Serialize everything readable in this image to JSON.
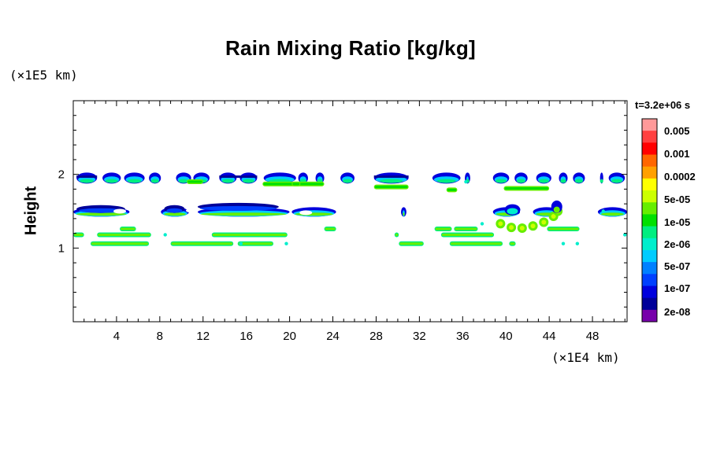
{
  "chart_data": {
    "type": "contour",
    "title": "Rain Mixing Ratio [kg/kg]",
    "ylabel": "Height",
    "x_unit": "(×1E4 km)",
    "y_unit": "(×1E5 km)",
    "time_label": "t=3.2e+06 s",
    "xlim": [
      0,
      51.2
    ],
    "ylim": [
      0,
      3
    ],
    "x_ticks": [
      "4",
      "8",
      "12",
      "16",
      "20",
      "24",
      "28",
      "32",
      "36",
      "40",
      "44",
      "48"
    ],
    "y_ticks": [
      "1",
      "2"
    ],
    "colorbar": {
      "levels": [
        "0.005",
        "0.001",
        "0.0002",
        "5e-05",
        "1e-05",
        "2e-06",
        "5e-07",
        "1e-07",
        "2e-08"
      ],
      "colors": [
        "#ff9999",
        "#ff4040",
        "#ff0000",
        "#ff6600",
        "#ffa000",
        "#ffff00",
        "#ccff00",
        "#66ee00",
        "#00e000",
        "#00ee80",
        "#00eecc",
        "#00ccff",
        "#0080ff",
        "#0040ff",
        "#0000dd",
        "#000099",
        "#7700aa"
      ]
    },
    "bands": [
      {
        "name": "upper",
        "y_range": [
          1.9,
          2.0
        ],
        "dominant": "2e-08..5e-06"
      },
      {
        "name": "mid",
        "y_range": [
          1.45,
          1.6
        ],
        "dominant": "2e-08..1e-05"
      },
      {
        "name": "lower",
        "y_range": [
          1.05,
          1.2
        ],
        "dominant": "5e-07..1e-05"
      }
    ]
  }
}
